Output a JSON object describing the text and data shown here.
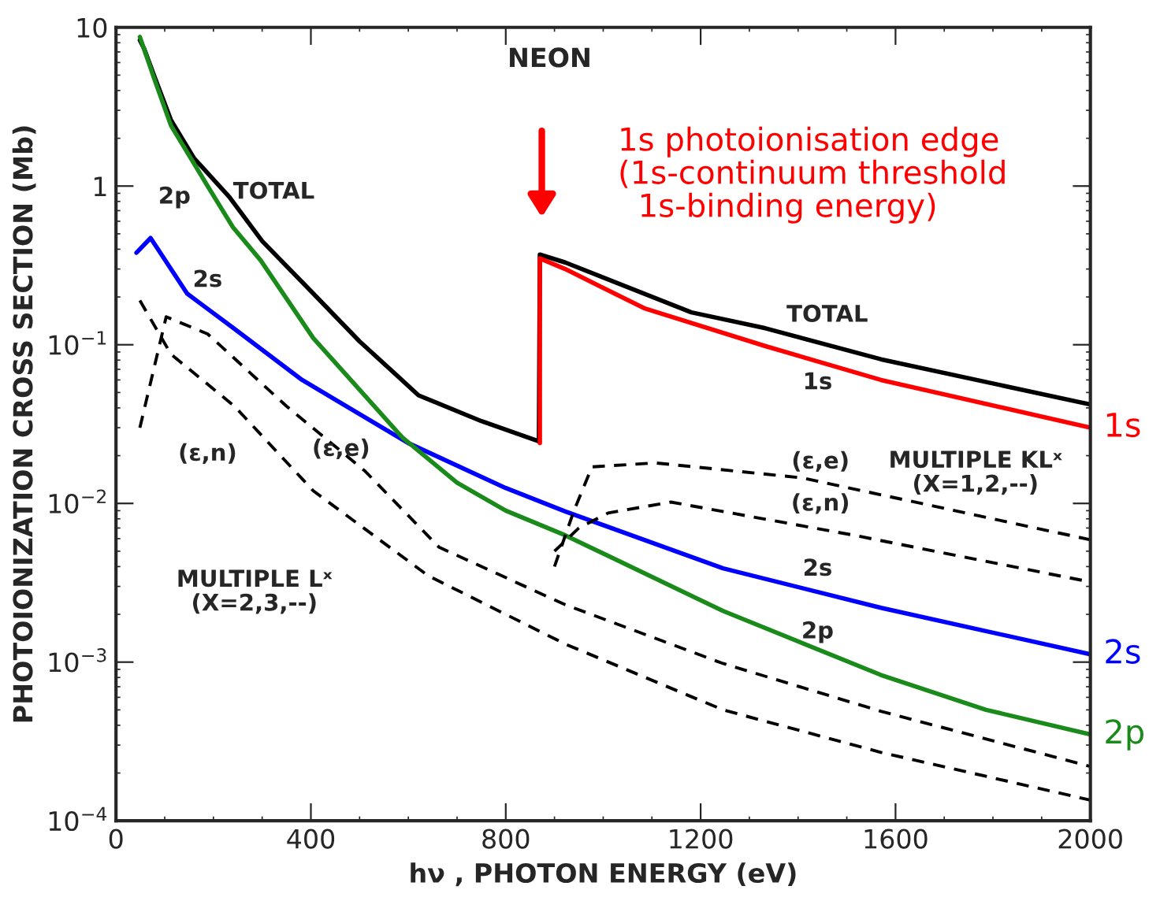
{
  "chart_data": {
    "type": "line",
    "title": "NEON",
    "xlabel": "hν , PHOTON ENERGY (eV)",
    "ylabel": "PHOTOIONIZATION CROSS SECTION (Mb)",
    "log": "y",
    "xlim": [
      0,
      2000
    ],
    "xticks": [
      0,
      400,
      800,
      1200,
      1600,
      2000
    ],
    "ylim": [
      0.0001,
      10
    ],
    "yticks": [
      {
        "value": 0.0001,
        "label": "10$^{−4}$"
      },
      {
        "value": 0.001,
        "label": "10$^{−3}$"
      },
      {
        "value": 0.01,
        "label": "10$^{−2}$"
      },
      {
        "value": 0.1,
        "label": "10$^{−1}$"
      },
      1,
      10
    ],
    "grid": false,
    "legend": false,
    "marker": "none",
    "series": [
      {
        "color": "#000000",
        "line_style": "solid",
        "x": [
          49,
          58,
          80,
          113,
          160,
          233,
          300,
          405,
          500,
          621,
          750,
          868,
          870,
          922,
          1181,
          1333,
          1570,
          2000
        ],
        "values": [
          8.3,
          7.3,
          4.8,
          2.6,
          1.5,
          0.85,
          0.45,
          0.21,
          0.105,
          0.048,
          0.033,
          0.0246,
          0.37,
          0.33,
          0.16,
          0.127,
          0.081,
          0.042
        ]
      },
      {
        "name": "1s",
        "color": "#ff0000",
        "line_style": "solid",
        "x": [
          870,
          870,
          922,
          1084,
          1333,
          1570,
          2000
        ],
        "values": [
          0.024,
          0.35,
          0.3,
          0.17,
          0.098,
          0.06,
          0.03
        ]
      },
      {
        "name": "2s",
        "color": "#0000ff",
        "line_style": "solid",
        "x": [
          42,
          71,
          146,
          243,
          382,
          600,
          800,
          922,
          1246,
          1570,
          2000
        ],
        "values": [
          0.38,
          0.47,
          0.21,
          0.126,
          0.06,
          0.024,
          0.0125,
          0.0089,
          0.0039,
          0.0022,
          0.00112
        ]
      },
      {
        "name": "2p",
        "color": "#1a8a1a",
        "line_style": "solid",
        "x": [
          49,
          80,
          113,
          188,
          240,
          297,
          405,
          588,
          700,
          800,
          922,
          1246,
          1570,
          1786,
          2000
        ],
        "values": [
          8.7,
          4.6,
          2.4,
          1.0,
          0.55,
          0.34,
          0.11,
          0.026,
          0.0135,
          0.009,
          0.0063,
          0.0021,
          0.00083,
          0.0005,
          0.00035
        ]
      },
      {
        "color": "#000000",
        "line_style": "dashed",
        "x": [
          49,
          103,
          188,
          350,
          511,
          663,
          922,
          1246,
          1570,
          2000
        ],
        "values": [
          0.03,
          0.15,
          0.117,
          0.041,
          0.016,
          0.0053,
          0.0023,
          0.00098,
          0.00049,
          0.00022
        ]
      },
      {
        "color": "#000000",
        "line_style": "dashed",
        "x": [
          49,
          113,
          243,
          405,
          641,
          922,
          1246,
          1570,
          2000
        ],
        "values": [
          0.19,
          0.087,
          0.041,
          0.012,
          0.0035,
          0.0013,
          0.0005,
          0.00027,
          0.000135
        ]
      },
      {
        "color": "#000000",
        "line_style": "dashed",
        "x": [
          900,
          940,
          977,
          1107,
          1408,
          2000
        ],
        "values": [
          0.004,
          0.009,
          0.017,
          0.018,
          0.0145,
          0.0059
        ]
      },
      {
        "color": "#000000",
        "line_style": "dashed",
        "x": [
          900,
          950,
          1010,
          1139,
          1515,
          2000
        ],
        "values": [
          0.005,
          0.007,
          0.0087,
          0.0102,
          0.0063,
          0.0032
        ]
      }
    ],
    "annotations": [
      "1s photoionisation edge\n(1s-continuum threshold\n  1s-binding energy)",
      "2p",
      "TOTAL",
      "2s",
      "(ε,n)",
      "(ε,e)",
      "MULTIPLE Lˣ\n(X=2,3,--)",
      "TOTAL",
      "1s",
      "(ε,e)",
      "(ε,n)",
      "MULTIPLE KLˣ\n(X=1,2,--)",
      "2s",
      "2p"
    ]
  }
}
